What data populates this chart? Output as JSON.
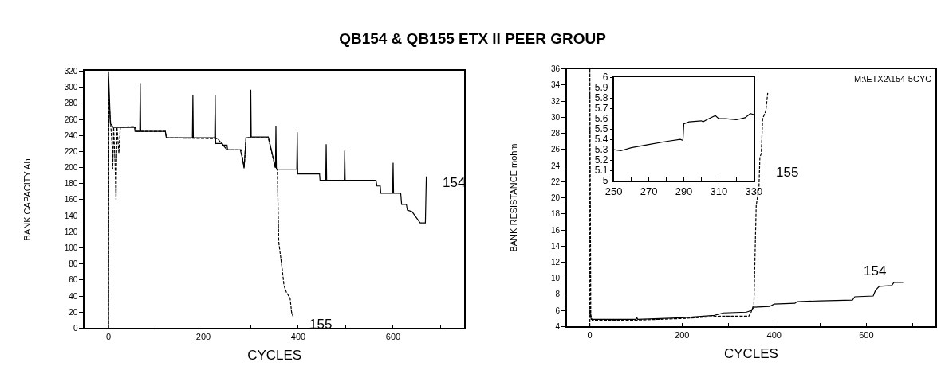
{
  "chart_data": [
    {
      "type": "line",
      "title": "QB154 & QB155 ETX II PEER GROUP",
      "xlabel": "CYCLES",
      "ylabel": "BANK CAPACITY Ah",
      "xlim": [
        -50,
        750
      ],
      "xticks": [
        0,
        {
          "value": 100,
          "label": null
        },
        200,
        {
          "value": 300,
          "label": null
        },
        400,
        {
          "value": 500,
          "label": null
        },
        600,
        {
          "value": 700,
          "label": null
        }
      ],
      "ylim": [
        0,
        320
      ],
      "yticks": [
        0,
        20,
        40,
        60,
        80,
        100,
        120,
        140,
        160,
        180,
        200,
        220,
        240,
        260,
        280,
        300,
        320
      ],
      "grid": false,
      "legend": false,
      "marker": "none",
      "series": [
        {
          "name": "154",
          "color": "#000000",
          "line_style": "solid",
          "x": [
            0,
            0,
            2,
            4,
            8,
            10,
            55,
            56,
            66,
            67,
            68,
            120,
            122,
            177,
            178,
            179,
            224,
            225,
            226,
            240,
            241,
            250,
            251,
            278,
            282,
            286,
            290,
            299,
            300,
            301,
            337,
            352,
            353,
            354,
            397,
            398,
            399,
            445,
            446,
            458,
            459,
            460,
            497,
            498,
            499,
            564,
            566,
            573,
            574,
            599,
            600,
            601,
            616,
            618,
            628,
            630,
            640,
            657,
            668,
            670
          ],
          "values": [
            0,
            320,
            290,
            255,
            252,
            250,
            250,
            245,
            245,
            305,
            245,
            245,
            237,
            237,
            290,
            237,
            237,
            290,
            230,
            230,
            228,
            228,
            222,
            222,
            212,
            200,
            237,
            237,
            297,
            238,
            238,
            200,
            252,
            198,
            198,
            244,
            192,
            192,
            184,
            184,
            229,
            184,
            184,
            221,
            184,
            184,
            177,
            177,
            168,
            168,
            206,
            168,
            168,
            154,
            154,
            147,
            145,
            131,
            131,
            189
          ]
        },
        {
          "name": "155",
          "color": "#000000",
          "line_style": "dashed",
          "x": [
            0,
            1,
            5,
            8,
            9,
            11,
            14,
            16,
            18,
            22,
            25,
            55,
            60,
            120,
            122,
            230,
            250,
            280,
            286,
            290,
            337,
            352,
            356,
            359,
            366,
            370,
            375,
            383,
            386,
            390
          ],
          "values": [
            0,
            285,
            252,
            225,
            198,
            250,
            205,
            160,
            250,
            218,
            250,
            251,
            245,
            245,
            237,
            236,
            222,
            222,
            199,
            237,
            237,
            199,
            198,
            107,
            75,
            53,
            45,
            37,
            20,
            13
          ]
        }
      ]
    },
    {
      "type": "line",
      "xlabel": "CYCLES",
      "ylabel": "BANK RESISTANCE mohm",
      "annotations": [
        "M:\\ETX2\\154-5CYC"
      ],
      "xlim": [
        -50,
        750
      ],
      "xticks": [
        0,
        {
          "value": 100,
          "label": null
        },
        200,
        {
          "value": 300,
          "label": null
        },
        400,
        {
          "value": 500,
          "label": null
        },
        600,
        {
          "value": 700,
          "label": null
        }
      ],
      "ylim": [
        4,
        36
      ],
      "yticks": [
        4,
        6,
        8,
        10,
        12,
        14,
        16,
        18,
        20,
        22,
        24,
        26,
        28,
        30,
        32,
        34,
        36
      ],
      "grid": false,
      "legend": false,
      "marker": "none",
      "series": [
        {
          "name": "154",
          "color": "#000000",
          "line_style": "solid",
          "x": [
            0,
            3,
            100,
            102,
            104,
            200,
            270,
            290,
            340,
            350,
            356,
            390,
            400,
            445,
            450,
            500,
            570,
            575,
            615,
            620,
            628,
            655,
            660,
            680
          ],
          "values": [
            5.8,
            4.9,
            4.9,
            5.1,
            4.9,
            5.1,
            5.4,
            5.7,
            5.8,
            6.0,
            6.4,
            6.5,
            6.8,
            6.9,
            7.1,
            7.2,
            7.3,
            7.7,
            7.8,
            8.5,
            9.0,
            9.1,
            9.5,
            9.5
          ]
        },
        {
          "name": "155",
          "color": "#000000",
          "line_style": "dashed",
          "x": [
            0,
            0,
            2,
            5,
            100,
            200,
            285,
            345,
            350,
            356,
            361,
            367,
            369,
            372,
            375,
            382,
            386
          ],
          "values": [
            4,
            36,
            5.5,
            4.8,
            4.8,
            5.0,
            5.3,
            5.3,
            5.8,
            6.8,
            19,
            21.3,
            25.0,
            25.5,
            29.8,
            30.8,
            33
          ]
        }
      ]
    },
    {
      "type": "line",
      "xlim": [
        250,
        330
      ],
      "xticks": [
        250,
        {
          "value": 260,
          "label": null
        },
        270,
        {
          "value": 280,
          "label": null
        },
        290,
        {
          "value": 300,
          "label": null
        },
        310,
        {
          "value": 320,
          "label": null
        },
        330
      ],
      "ylim": [
        5,
        6
      ],
      "yticks": [
        5,
        5.1,
        5.2,
        5.3,
        5.4,
        5.5,
        5.6,
        5.7,
        5.8,
        5.9,
        6
      ],
      "grid": false,
      "legend": false,
      "marker": "none",
      "series": [
        {
          "color": "#000000",
          "x": [
            250,
            254,
            260,
            270,
            280,
            288,
            289.5,
            290,
            293,
            300,
            301,
            303,
            308,
            310,
            314,
            320,
            325,
            328,
            330
          ],
          "values": [
            5.3,
            5.29,
            5.32,
            5.35,
            5.38,
            5.4,
            5.39,
            5.55,
            5.57,
            5.58,
            5.57,
            5.59,
            5.63,
            5.6,
            5.6,
            5.59,
            5.61,
            5.65,
            5.64
          ]
        }
      ]
    }
  ]
}
